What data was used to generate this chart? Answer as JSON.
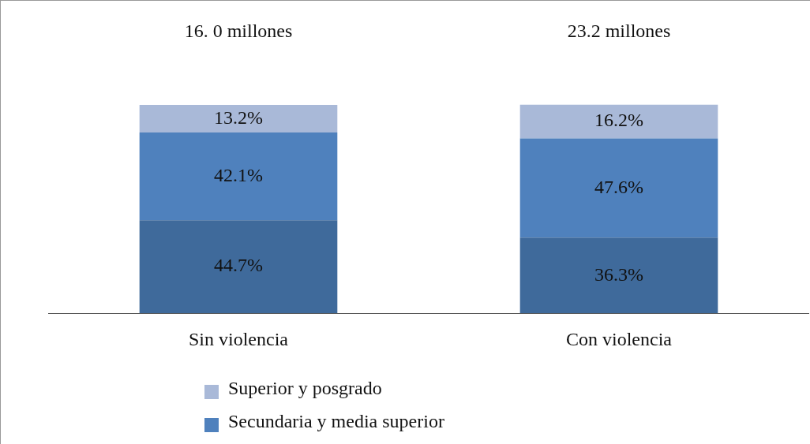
{
  "chart_data": {
    "type": "bar",
    "stacked": true,
    "categories": [
      "Sin violencia",
      "Con violencia"
    ],
    "series": [
      {
        "color": "#3f6a9b",
        "values": [
          44.7,
          36.3
        ],
        "value_labels": [
          "44.7%",
          "36.3%"
        ]
      },
      {
        "name": "Secundaria y media superior",
        "color": "#4f81bd",
        "values": [
          42.1,
          47.6
        ],
        "value_labels": [
          "42.1%",
          "47.6%"
        ]
      },
      {
        "name": "Superior y posgrado",
        "color": "#a9b9d8",
        "values": [
          13.2,
          16.2
        ],
        "value_labels": [
          "13.2%",
          "16.2%"
        ]
      }
    ],
    "ylim": [
      0,
      150
    ],
    "annotations": [
      "16. 0 millones",
      "23.2 millones"
    ],
    "legend": "bottom",
    "grid": false,
    "tick_labels": "x"
  }
}
